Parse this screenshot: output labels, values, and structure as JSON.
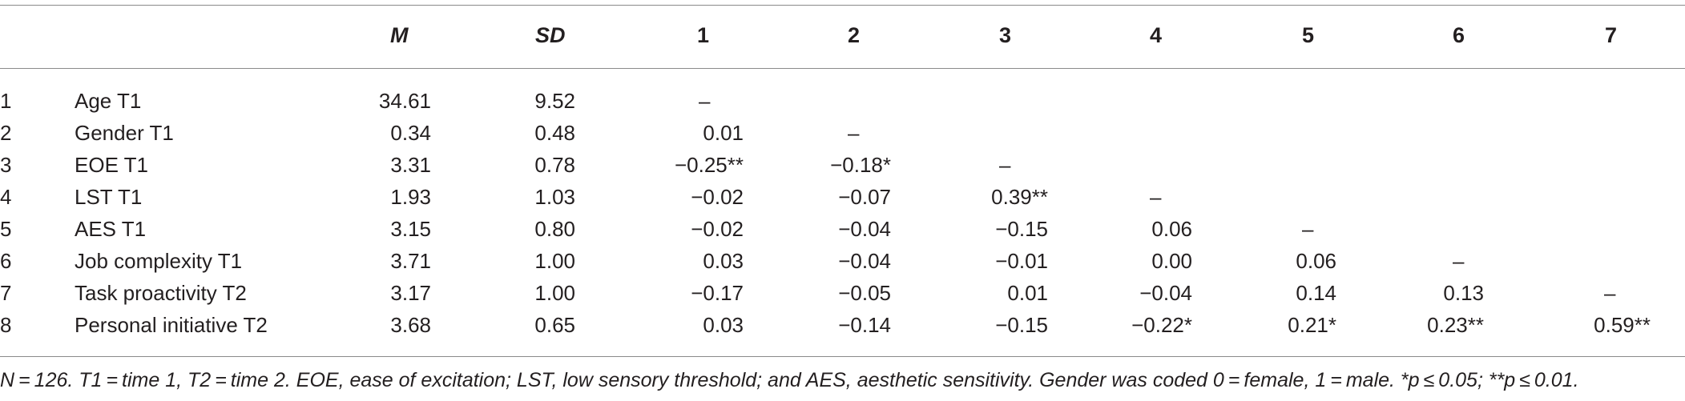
{
  "table": {
    "headers": {
      "m": "M",
      "sd": "SD",
      "c1": "1",
      "c2": "2",
      "c3": "3",
      "c4": "4",
      "c5": "5",
      "c6": "6",
      "c7": "7"
    },
    "rows": [
      {
        "idx": "1",
        "label": "Age T1",
        "m": "34.61",
        "sd": "9.52",
        "c1": "–",
        "c2": "",
        "c3": "",
        "c4": "",
        "c5": "",
        "c6": "",
        "c7": ""
      },
      {
        "idx": "2",
        "label": "Gender T1",
        "m": "0.34",
        "sd": "0.48",
        "c1": "0.01",
        "c2": "–",
        "c3": "",
        "c4": "",
        "c5": "",
        "c6": "",
        "c7": ""
      },
      {
        "idx": "3",
        "label": "EOE T1",
        "m": "3.31",
        "sd": "0.78",
        "c1": "−0.25**",
        "c2": "−0.18*",
        "c3": "–",
        "c4": "",
        "c5": "",
        "c6": "",
        "c7": ""
      },
      {
        "idx": "4",
        "label": "LST T1",
        "m": "1.93",
        "sd": "1.03",
        "c1": "−0.02",
        "c2": "−0.07",
        "c3": "0.39**",
        "c4": "–",
        "c5": "",
        "c6": "",
        "c7": ""
      },
      {
        "idx": "5",
        "label": "AES T1",
        "m": "3.15",
        "sd": "0.80",
        "c1": "−0.02",
        "c2": "−0.04",
        "c3": "−0.15",
        "c4": "0.06",
        "c5": "–",
        "c6": "",
        "c7": ""
      },
      {
        "idx": "6",
        "label": "Job complexity T1",
        "m": "3.71",
        "sd": "1.00",
        "c1": "0.03",
        "c2": "−0.04",
        "c3": "−0.01",
        "c4": "0.00",
        "c5": "0.06",
        "c6": "–",
        "c7": ""
      },
      {
        "idx": "7",
        "label": "Task proactivity T2",
        "m": "3.17",
        "sd": "1.00",
        "c1": "−0.17",
        "c2": "−0.05",
        "c3": "0.01",
        "c4": "−0.04",
        "c5": "0.14",
        "c6": "0.13",
        "c7": "–"
      },
      {
        "idx": "8",
        "label": "Personal initiative T2",
        "m": "3.68",
        "sd": "0.65",
        "c1": "0.03",
        "c2": "−0.14",
        "c3": "−0.15",
        "c4": "−0.22*",
        "c5": "0.21*",
        "c6": "0.23**",
        "c7": "0.59**"
      }
    ]
  },
  "note": "N = 126. T1 = time 1, T2 = time 2. EOE, ease of excitation; LST, low sensory threshold; and AES, aesthetic sensitivity. Gender was coded 0 = female, 1 = male. *p ≤ 0.05; **p ≤ 0.01."
}
